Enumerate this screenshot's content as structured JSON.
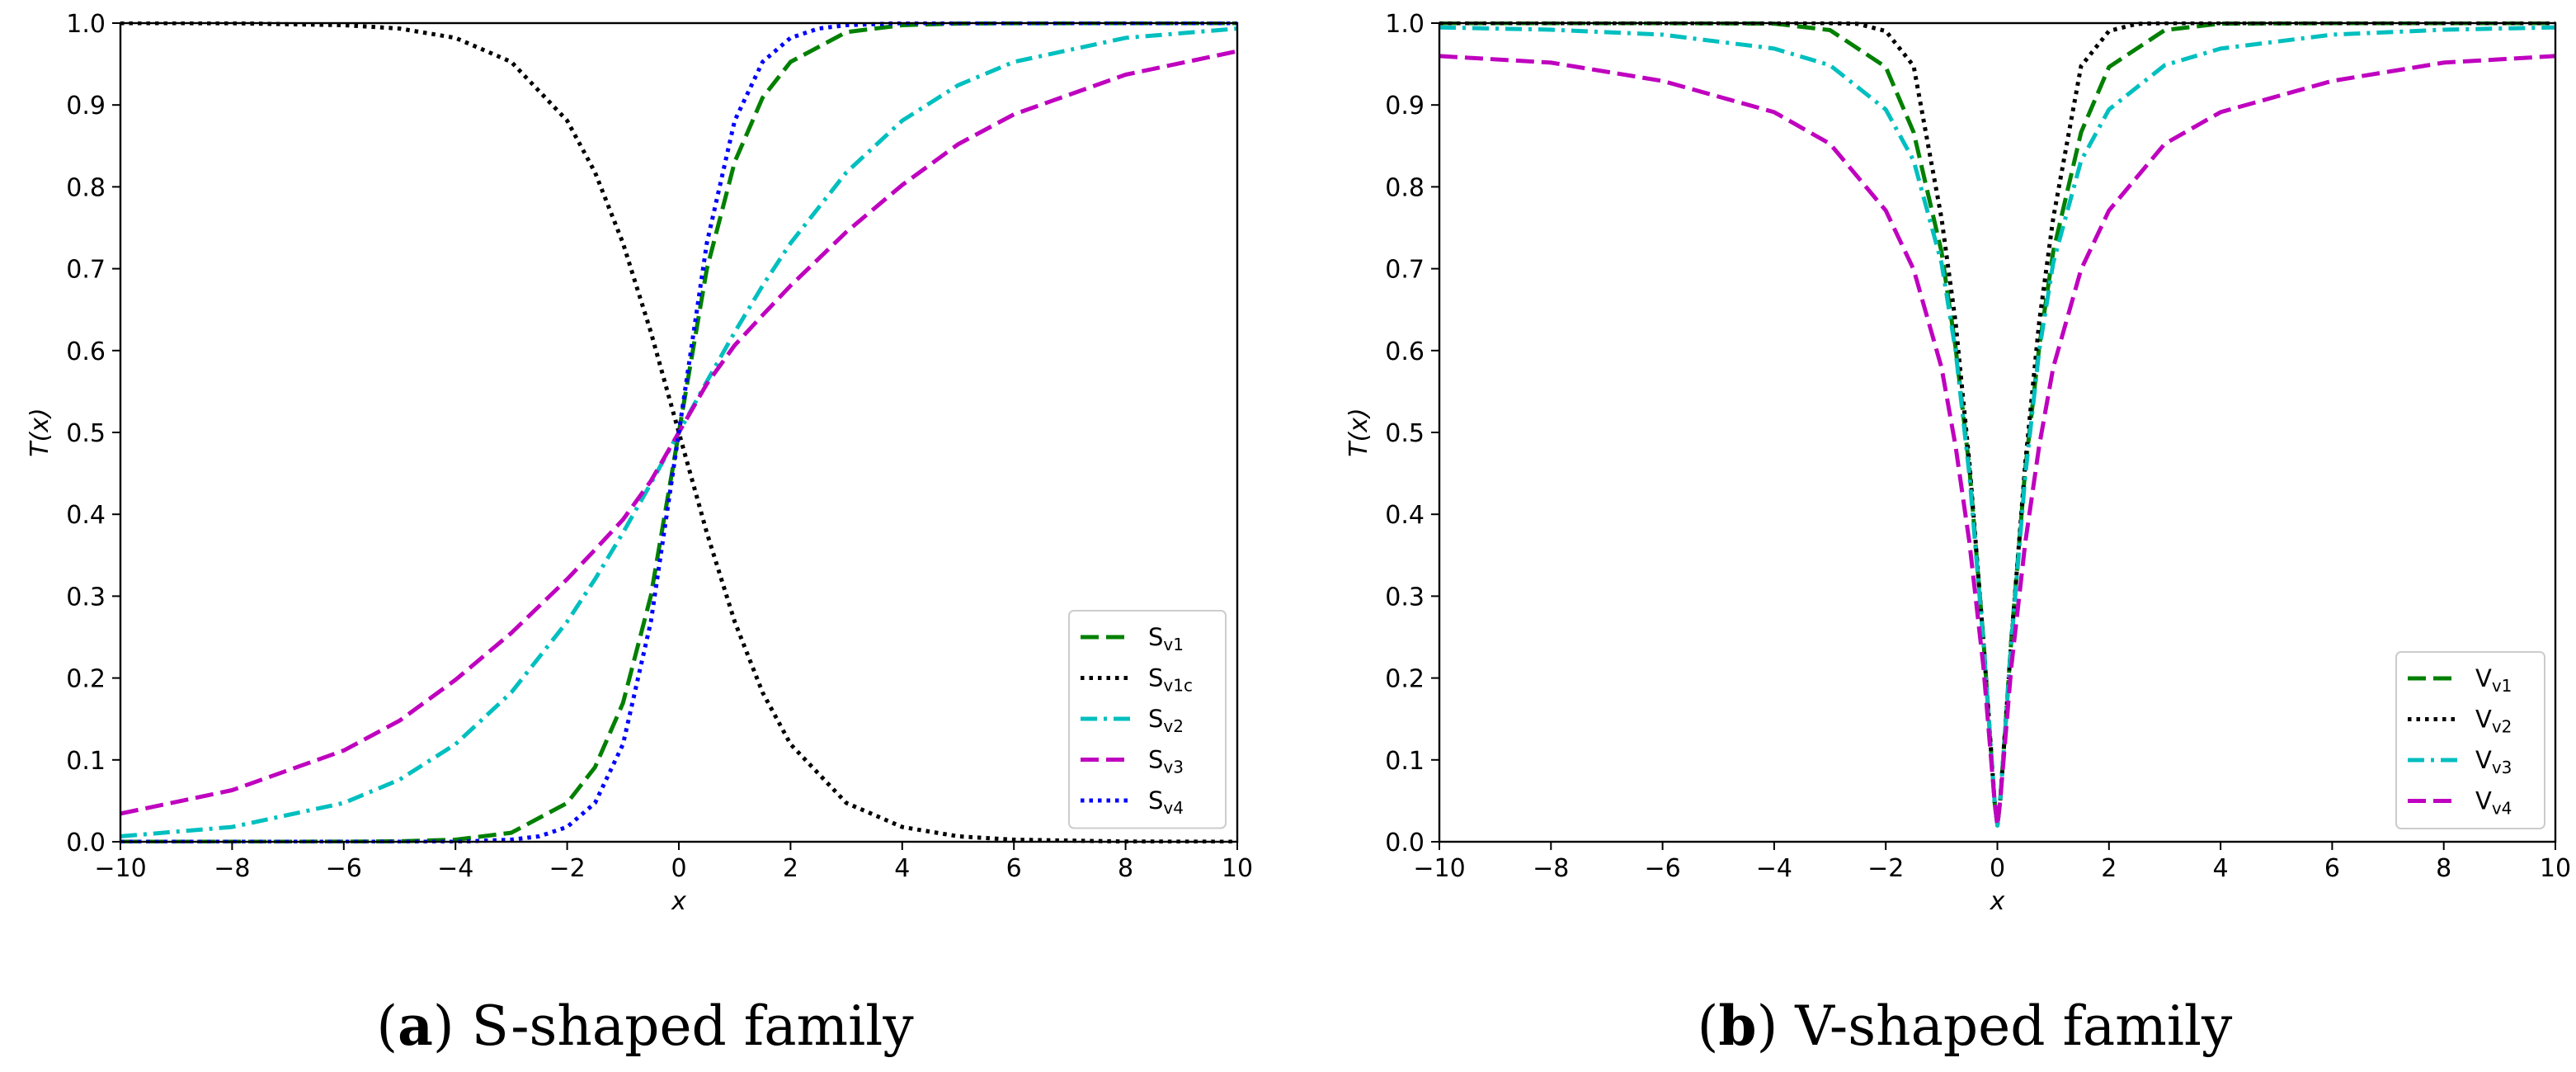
{
  "chart_data": [
    {
      "type": "line",
      "id": "a",
      "caption": {
        "prefix_open": "(",
        "letter": "a",
        "prefix_close": ")",
        "text": " S-shaped family"
      },
      "xlabel": "x",
      "ylabel": "T(x)",
      "xlim": [
        -10,
        10
      ],
      "ylim": [
        0,
        1
      ],
      "xticks": [
        -10,
        -8,
        -6,
        -4,
        -2,
        0,
        2,
        4,
        6,
        8,
        10
      ],
      "yticks": [
        0.0,
        0.1,
        0.2,
        0.3,
        0.4,
        0.5,
        0.6,
        0.7,
        0.8,
        0.9,
        1.0
      ],
      "legend_position": "lower-right",
      "series": [
        {
          "name": "S",
          "sub": "v1",
          "color": "#008000",
          "style": "dashed",
          "x": [
            -10,
            -8,
            -6,
            -5,
            -4,
            -3,
            -2,
            -1.5,
            -1,
            -0.5,
            0,
            0.5,
            1,
            1.5,
            2,
            3,
            4,
            5,
            6,
            8,
            10
          ],
          "values": [
            0.0,
            0.0,
            0.0001,
            0.0005,
            0.0025,
            0.011,
            0.0474,
            0.0911,
            0.1696,
            0.3005,
            0.5,
            0.6995,
            0.8304,
            0.9089,
            0.9526,
            0.989,
            0.9975,
            0.9995,
            0.9999,
            1.0,
            1.0
          ]
        },
        {
          "name": "S",
          "sub": "v1c",
          "color": "#000000",
          "style": "dotted",
          "x": [
            -10,
            -8,
            -6,
            -5,
            -4,
            -3,
            -2,
            -1.5,
            -1,
            -0.5,
            0,
            0.5,
            1,
            1.5,
            2,
            3,
            4,
            5,
            6,
            8,
            10
          ],
          "values": [
            1.0,
            0.9999,
            0.9975,
            0.9933,
            0.982,
            0.9526,
            0.8808,
            0.8176,
            0.7311,
            0.6225,
            0.5,
            0.3775,
            0.2689,
            0.1824,
            0.1192,
            0.0474,
            0.018,
            0.0067,
            0.0025,
            0.0003,
            0.0
          ]
        },
        {
          "name": "S",
          "sub": "v2",
          "color": "#00BFBF",
          "style": "dashdot",
          "x": [
            -10,
            -8,
            -6,
            -5,
            -4,
            -3,
            -2,
            -1.5,
            -1,
            -0.5,
            0,
            0.5,
            1,
            1.5,
            2,
            3,
            4,
            5,
            6,
            8,
            10
          ],
          "values": [
            0.0067,
            0.018,
            0.0474,
            0.0759,
            0.1192,
            0.1824,
            0.2689,
            0.3208,
            0.3775,
            0.4378,
            0.5,
            0.5622,
            0.6225,
            0.6792,
            0.7311,
            0.8176,
            0.8808,
            0.9241,
            0.9526,
            0.982,
            0.9933
          ]
        },
        {
          "name": "S",
          "sub": "v3",
          "color": "#BF00BF",
          "style": "dashed",
          "x": [
            -10,
            -8,
            -6,
            -5,
            -4,
            -3,
            -2,
            -1.5,
            -1,
            -0.5,
            0,
            0.5,
            1,
            1.5,
            2,
            3,
            4,
            5,
            6,
            8,
            10
          ],
          "values": [
            0.0344,
            0.063,
            0.1115,
            0.148,
            0.1978,
            0.255,
            0.3208,
            0.3568,
            0.3935,
            0.4407,
            0.5,
            0.5593,
            0.6065,
            0.6432,
            0.6792,
            0.745,
            0.8022,
            0.852,
            0.8885,
            0.937,
            0.9656
          ]
        },
        {
          "name": "S",
          "sub": "v4",
          "color": "#0000FF",
          "style": "dotted",
          "x": [
            -10,
            -6,
            -4,
            -3,
            -2.5,
            -2,
            -1.5,
            -1,
            -0.5,
            0,
            0.5,
            1,
            1.5,
            2,
            2.5,
            3,
            4,
            6,
            10
          ],
          "values": [
            0.0,
            0.0,
            0.0,
            0.0025,
            0.0067,
            0.018,
            0.0474,
            0.1192,
            0.2689,
            0.5,
            0.7311,
            0.8808,
            0.9526,
            0.982,
            0.9933,
            0.9975,
            1.0,
            1.0,
            1.0
          ]
        }
      ]
    },
    {
      "type": "line",
      "id": "b",
      "caption": {
        "prefix_open": "(",
        "letter": "b",
        "prefix_close": ")",
        "text": " V-shaped family"
      },
      "xlabel": "x",
      "ylabel": "T(x)",
      "xlim": [
        -10,
        10
      ],
      "ylim": [
        0,
        1
      ],
      "xticks": [
        -10,
        -8,
        -6,
        -4,
        -2,
        0,
        2,
        4,
        6,
        8,
        10
      ],
      "yticks": [
        0.0,
        0.1,
        0.2,
        0.3,
        0.4,
        0.5,
        0.6,
        0.7,
        0.8,
        0.9,
        1.0
      ],
      "legend_position": "lower-right",
      "series": [
        {
          "name": "V",
          "sub": "v1",
          "color": "#008000",
          "style": "dashed",
          "x": [
            -10,
            -6,
            -4,
            -3,
            -2,
            -1.5,
            -1,
            -0.75,
            -0.5,
            -0.25,
            -0.05,
            0,
            0.05,
            0.25,
            0.5,
            0.75,
            1,
            1.5,
            2,
            3,
            4,
            6,
            10
          ],
          "values": [
            1.0,
            1.0,
            0.9994,
            0.9914,
            0.9464,
            0.8665,
            0.7207,
            0.6042,
            0.4552,
            0.2468,
            0.0485,
            0.02,
            0.0485,
            0.2468,
            0.4552,
            0.6042,
            0.7207,
            0.8665,
            0.9464,
            0.9914,
            0.9994,
            1.0,
            1.0
          ]
        },
        {
          "name": "V",
          "sub": "v2",
          "color": "#000000",
          "style": "dotted",
          "x": [
            -10,
            -6,
            -4,
            -3,
            -2.5,
            -2,
            -1.5,
            -1,
            -0.75,
            -0.5,
            -0.25,
            -0.05,
            0,
            0.05,
            0.25,
            0.5,
            0.75,
            1,
            1.5,
            2,
            2.5,
            3,
            4,
            6,
            10
          ],
          "values": [
            1.0,
            1.0,
            1.0,
            1.0,
            0.9991,
            0.9903,
            0.9476,
            0.7616,
            0.6351,
            0.4621,
            0.2449,
            0.05,
            0.02,
            0.05,
            0.2449,
            0.4621,
            0.6351,
            0.7616,
            0.9476,
            0.9903,
            0.9991,
            1.0,
            1.0,
            1.0,
            1.0
          ]
        },
        {
          "name": "V",
          "sub": "v3",
          "color": "#00BFBF",
          "style": "dashdot",
          "x": [
            -10,
            -8,
            -6,
            -4,
            -3,
            -2,
            -1.5,
            -1,
            -0.75,
            -0.5,
            -0.25,
            -0.05,
            0,
            0.05,
            0.25,
            0.5,
            0.75,
            1,
            1.5,
            2,
            3,
            4,
            6,
            8,
            10
          ],
          "values": [
            0.9948,
            0.9919,
            0.9859,
            0.9689,
            0.9486,
            0.8945,
            0.832,
            0.7071,
            0.6,
            0.4472,
            0.2425,
            0.05,
            0.02,
            0.05,
            0.2425,
            0.4472,
            0.6,
            0.7071,
            0.832,
            0.8945,
            0.9486,
            0.9689,
            0.9859,
            0.9919,
            0.9948
          ]
        },
        {
          "name": "V",
          "sub": "v4",
          "color": "#BF00BF",
          "style": "dashed",
          "x": [
            -10,
            -8,
            -6,
            -4,
            -3,
            -2,
            -1.5,
            -1,
            -0.75,
            -0.5,
            -0.25,
            -0.05,
            0,
            0.05,
            0.25,
            0.5,
            0.75,
            1,
            1.5,
            2,
            3,
            4,
            6,
            8,
            10
          ],
          "values": [
            0.9598,
            0.9517,
            0.9293,
            0.8912,
            0.8525,
            0.7711,
            0.6991,
            0.5792,
            0.4835,
            0.3652,
            0.2136,
            0.05,
            0.02,
            0.05,
            0.2136,
            0.3652,
            0.4835,
            0.5792,
            0.6991,
            0.7711,
            0.8525,
            0.8912,
            0.9293,
            0.9517,
            0.9598
          ]
        }
      ]
    }
  ]
}
